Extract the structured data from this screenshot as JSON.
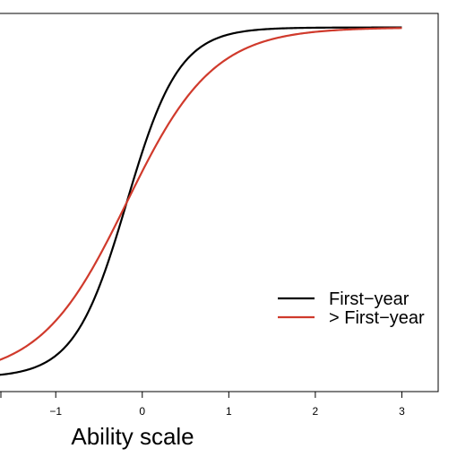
{
  "chart_data": {
    "type": "line",
    "title": "",
    "xlabel": "Ability scale",
    "ylabel": "",
    "x_ticks": [
      -1,
      0,
      1,
      2,
      3
    ],
    "x_tick_labels": [
      "−1",
      "0",
      "1",
      "2",
      "3"
    ],
    "xlim": [
      -1.665,
      3.42
    ],
    "ylim": [
      -0.04,
      1.04
    ],
    "x_range": [
      -1.7,
      3.0
    ],
    "grid": false,
    "legend_position": "right",
    "series": [
      {
        "name": "First−year",
        "color": "#000000",
        "a": 3.3,
        "b": -0.18,
        "c": 0.0
      },
      {
        "name": "> First−year",
        "color": "#d03a2c",
        "a": 2.0,
        "b": -0.18,
        "c": 0.0
      }
    ]
  }
}
